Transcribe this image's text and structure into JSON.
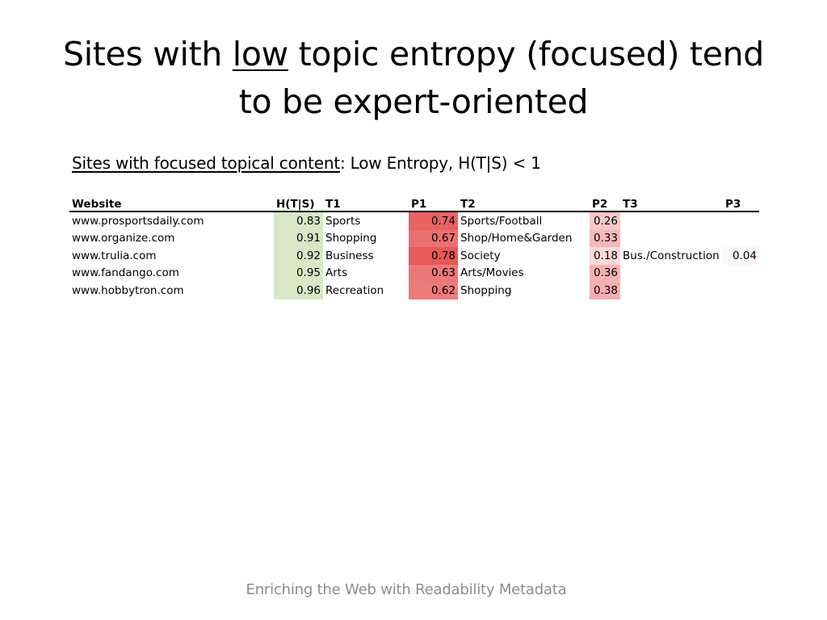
{
  "title": {
    "before": "Sites with ",
    "underlined": "low",
    "after_line1": " topic entropy (focused) tend",
    "line2": "to be expert-oriented"
  },
  "subtitle": {
    "underlined": "Sites with focused topical content",
    "rest": ":   Low Entropy, H(T|S) < 1"
  },
  "table": {
    "headers": [
      "Website",
      "H(T|S)",
      "T1",
      "P1",
      "T2",
      "P2",
      "T3",
      "P3"
    ],
    "rows": [
      {
        "website": "www.prosportsdaily.com",
        "h": "0.83",
        "t1": "Sports",
        "p1": "0.74",
        "t2": "Sports/Football",
        "p2": "0.26",
        "t3": "",
        "p3": ""
      },
      {
        "website": "www.organize.com",
        "h": "0.91",
        "t1": "Shopping",
        "p1": "0.67",
        "t2": "Shop/Home&Garden",
        "p2": "0.33",
        "t3": "",
        "p3": ""
      },
      {
        "website": "www.trulia.com",
        "h": "0.92",
        "t1": "Business",
        "p1": "0.78",
        "t2": "Society",
        "p2": "0.18",
        "t3": "Bus./Construction",
        "p3": "0.04"
      },
      {
        "website": "www.fandango.com",
        "h": "0.95",
        "t1": "Arts",
        "p1": "0.63",
        "t2": "Arts/Movies",
        "p2": "0.36",
        "t3": "",
        "p3": ""
      },
      {
        "website": "www.hobbytron.com",
        "h": "0.96",
        "t1": "Recreation",
        "p1": "0.62",
        "t2": "Shopping",
        "p2": "0.38",
        "t3": "",
        "p3": ""
      }
    ]
  },
  "colors": {
    "entropy_cell": "#d8e7c6",
    "probability_max": "#e8595a",
    "probability_min": "#ffffff"
  },
  "footer": "Enriching the Web with Readability Metadata"
}
